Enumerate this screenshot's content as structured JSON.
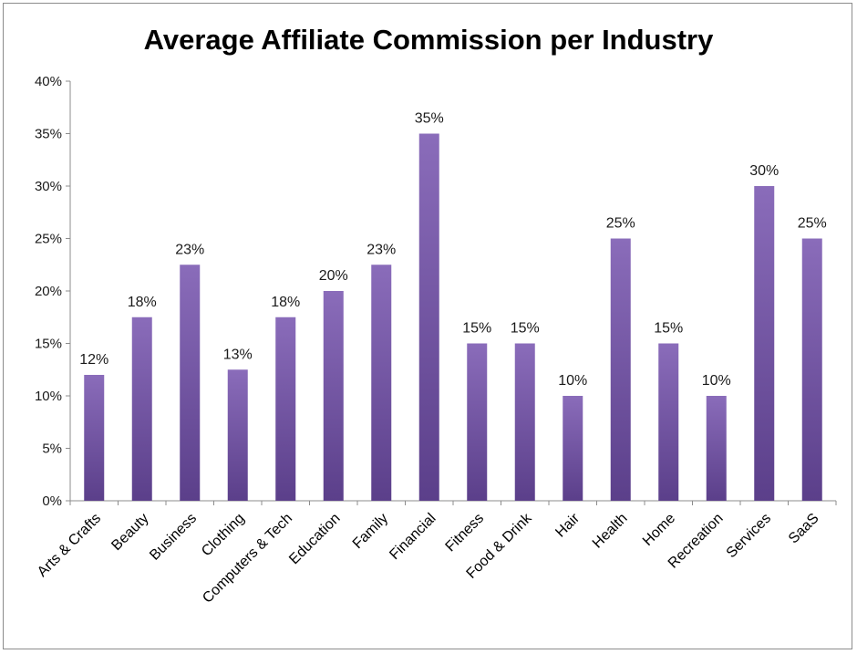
{
  "chart_data": {
    "type": "bar",
    "title": "Average Affiliate Commission per Industry",
    "xlabel": "",
    "ylabel": "",
    "ylim": [
      0,
      40
    ],
    "yticks": [
      "0%",
      "5%",
      "10%",
      "15%",
      "20%",
      "25%",
      "30%",
      "35%",
      "40%"
    ],
    "grid": false,
    "legend": "none",
    "categories": [
      "Arts & Crafts",
      "Beauty",
      "Business",
      "Clothing",
      "Computers & Tech",
      "Education",
      "Family",
      "Financial",
      "Fitness",
      "Food & Drink",
      "Hair",
      "Health",
      "Home",
      "Recreation",
      "Services",
      "SaaS"
    ],
    "values": [
      12,
      17.5,
      22.5,
      12.5,
      17.5,
      20,
      22.5,
      35,
      15,
      15,
      10,
      25,
      15,
      10,
      30,
      25
    ],
    "data_labels": [
      "12%",
      "18%",
      "23%",
      "13%",
      "18%",
      "20%",
      "23%",
      "35%",
      "15%",
      "15%",
      "10%",
      "25%",
      "15%",
      "10%",
      "30%",
      "25%"
    ],
    "colors": {
      "bar_top": "#8a6cba",
      "bar_bottom": "#5b3f8a",
      "axis": "#8c8c8c"
    }
  }
}
